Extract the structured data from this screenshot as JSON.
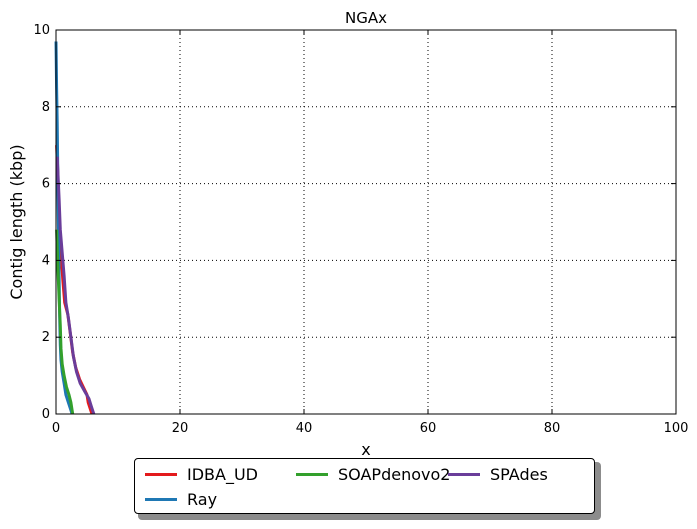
{
  "chart_data": {
    "type": "line",
    "title": "NGAx",
    "xlabel": "x",
    "ylabel": "Contig length  (kbp)",
    "xlim": [
      0,
      100
    ],
    "ylim": [
      0,
      10
    ],
    "xticks": [
      "0",
      "20",
      "40",
      "60",
      "80",
      "100"
    ],
    "yticks": [
      "0",
      "2",
      "4",
      "6",
      "8",
      "10"
    ],
    "grid": true,
    "legend_position": "bottom",
    "series": [
      {
        "name": "IDBA_UD",
        "color": "#e31a1c",
        "points": [
          [
            0.1,
            7.0
          ],
          [
            0.3,
            6.2
          ],
          [
            0.5,
            5.0
          ],
          [
            0.8,
            4.2
          ],
          [
            1.1,
            3.5
          ],
          [
            1.4,
            2.9
          ],
          [
            1.9,
            2.6
          ],
          [
            2.3,
            2.1
          ],
          [
            2.7,
            1.6
          ],
          [
            3.2,
            1.2
          ],
          [
            3.8,
            0.9
          ],
          [
            4.4,
            0.7
          ],
          [
            5.0,
            0.5
          ],
          [
            5.2,
            0.3
          ],
          [
            5.6,
            0.1
          ],
          [
            5.8,
            0.0
          ]
        ]
      },
      {
        "name": "Ray",
        "color": "#1f78b4",
        "points": [
          [
            0.0,
            9.7
          ],
          [
            0.1,
            8.5
          ],
          [
            0.2,
            7.6
          ],
          [
            0.3,
            6.0
          ],
          [
            0.4,
            4.8
          ],
          [
            0.5,
            3.6
          ],
          [
            0.6,
            2.5
          ],
          [
            0.7,
            1.8
          ],
          [
            0.8,
            1.4
          ],
          [
            1.0,
            1.1
          ],
          [
            1.3,
            0.8
          ],
          [
            1.6,
            0.5
          ],
          [
            2.0,
            0.3
          ],
          [
            2.4,
            0.1
          ],
          [
            2.6,
            0.0
          ]
        ]
      },
      {
        "name": "SOAPdenovo2",
        "color": "#33a02c",
        "points": [
          [
            0.1,
            4.8
          ],
          [
            0.3,
            3.8
          ],
          [
            0.5,
            3.0
          ],
          [
            0.7,
            2.3
          ],
          [
            0.8,
            1.7
          ],
          [
            1.0,
            1.3
          ],
          [
            1.3,
            1.0
          ],
          [
            1.7,
            0.7
          ],
          [
            2.1,
            0.5
          ],
          [
            2.4,
            0.3
          ],
          [
            2.6,
            0.1
          ],
          [
            2.7,
            0.0
          ]
        ]
      },
      {
        "name": "SPAdes",
        "color": "#6a3d9a",
        "points": [
          [
            0.2,
            6.7
          ],
          [
            0.5,
            5.6
          ],
          [
            0.7,
            4.8
          ],
          [
            1.0,
            4.2
          ],
          [
            1.3,
            3.6
          ],
          [
            1.6,
            2.9
          ],
          [
            2.0,
            2.5
          ],
          [
            2.4,
            2.0
          ],
          [
            2.8,
            1.5
          ],
          [
            3.3,
            1.1
          ],
          [
            3.9,
            0.8
          ],
          [
            4.6,
            0.6
          ],
          [
            5.3,
            0.4
          ],
          [
            5.7,
            0.2
          ],
          [
            6.1,
            0.0
          ]
        ]
      }
    ]
  }
}
